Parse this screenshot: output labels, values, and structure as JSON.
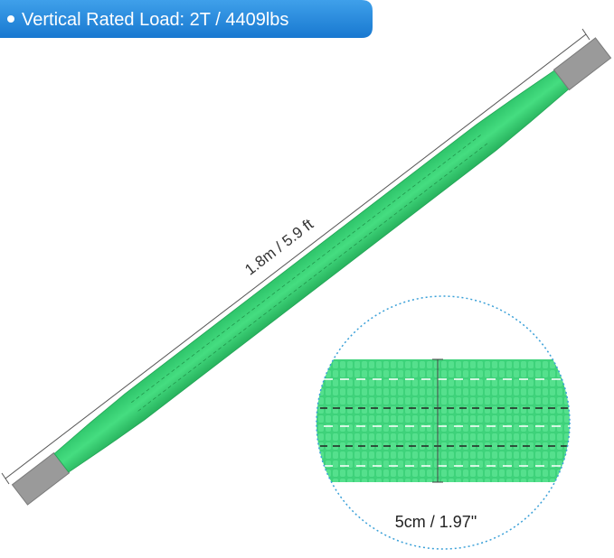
{
  "badge": {
    "text": "Vertical Rated Load: 2T / 4409lbs"
  },
  "length_label": "1.8m / 5.9 ft",
  "width_label": "5cm / 1.97\""
}
